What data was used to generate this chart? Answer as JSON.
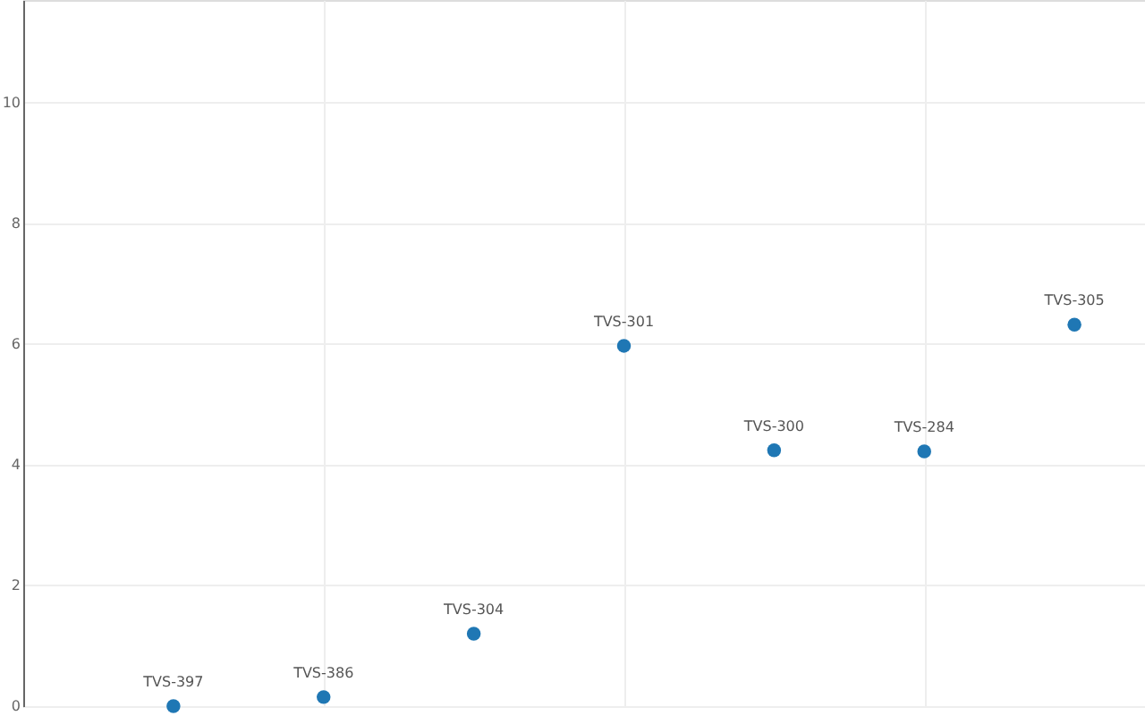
{
  "chart_data": {
    "type": "scatter",
    "categories": [
      null,
      null,
      null,
      null,
      null,
      null,
      null
    ],
    "series": [
      {
        "name": "TVS-397",
        "color": "#1f77b4",
        "values": [
          0.0,
          null,
          null,
          null,
          null,
          null,
          null
        ]
      },
      {
        "name": "TVS-386",
        "color": "#1f77b4",
        "values": [
          null,
          0.15,
          null,
          null,
          null,
          null,
          null
        ]
      },
      {
        "name": "TVS-304",
        "color": "#1f77b4",
        "values": [
          null,
          null,
          1.2,
          null,
          null,
          null,
          null
        ]
      },
      {
        "name": "TVS-301",
        "color": "#1f77b4",
        "values": [
          null,
          null,
          null,
          5.97,
          null,
          null,
          null
        ]
      },
      {
        "name": "TVS-300",
        "color": "#1f77b4",
        "values": [
          null,
          null,
          null,
          null,
          4.24,
          null,
          null
        ]
      },
      {
        "name": "TVS-284",
        "color": "#1f77b4",
        "values": [
          null,
          null,
          null,
          null,
          null,
          4.22,
          null
        ]
      },
      {
        "name": "TVS-305",
        "color": "#1f77b4",
        "values": [
          null,
          null,
          null,
          null,
          null,
          null,
          6.32
        ]
      }
    ],
    "ylim": [
      0,
      11.7
    ],
    "yticks": [
      0,
      2,
      4,
      6,
      8,
      10
    ],
    "grid": true,
    "marker": "circle",
    "tick_labels": "y"
  }
}
